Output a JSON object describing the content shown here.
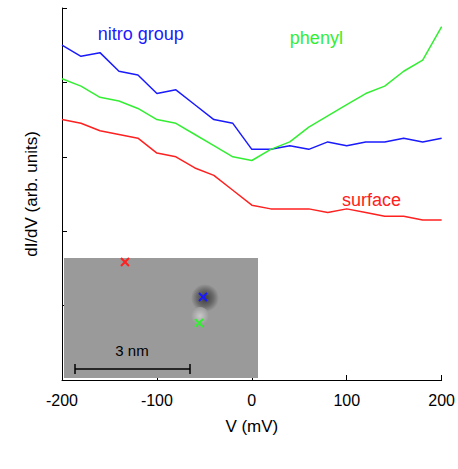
{
  "chart_data": {
    "type": "line",
    "x_label": "V (mV)",
    "y_label": "dI/dV (arb. units)",
    "x": [
      -200,
      -180,
      -160,
      -140,
      -120,
      -100,
      -80,
      -60,
      -40,
      -20,
      0,
      20,
      40,
      60,
      80,
      100,
      120,
      140,
      160,
      180,
      200
    ],
    "series": [
      {
        "name": "nitro group",
        "color": "#1a1aff",
        "values": [
          9.0,
          8.7,
          8.8,
          8.3,
          8.2,
          7.7,
          7.8,
          7.4,
          7.0,
          6.9,
          6.2,
          6.2,
          6.3,
          6.2,
          6.4,
          6.3,
          6.4,
          6.4,
          6.5,
          6.4,
          6.5
        ]
      },
      {
        "name": "phenyl",
        "color": "#33ee33",
        "values": [
          8.1,
          7.9,
          7.6,
          7.5,
          7.3,
          7.0,
          6.9,
          6.6,
          6.3,
          6.0,
          5.9,
          6.2,
          6.4,
          6.8,
          7.1,
          7.4,
          7.7,
          7.9,
          8.3,
          8.6,
          9.5
        ]
      },
      {
        "name": "surface",
        "color": "#ff2020",
        "values": [
          7.0,
          6.9,
          6.7,
          6.6,
          6.5,
          6.1,
          6.0,
          5.7,
          5.5,
          5.1,
          4.7,
          4.6,
          4.6,
          4.6,
          4.5,
          4.6,
          4.5,
          4.4,
          4.4,
          4.3,
          4.3
        ]
      }
    ],
    "xlim": [
      -200,
      200
    ],
    "xticks": [
      -200,
      -100,
      0,
      100,
      200
    ],
    "ylim": [
      0,
      10
    ],
    "yticks": [
      0,
      2,
      4,
      6,
      8,
      10
    ],
    "tick_labels": "x",
    "grid": false,
    "inset": {
      "scale_bar": "3 nm"
    }
  }
}
